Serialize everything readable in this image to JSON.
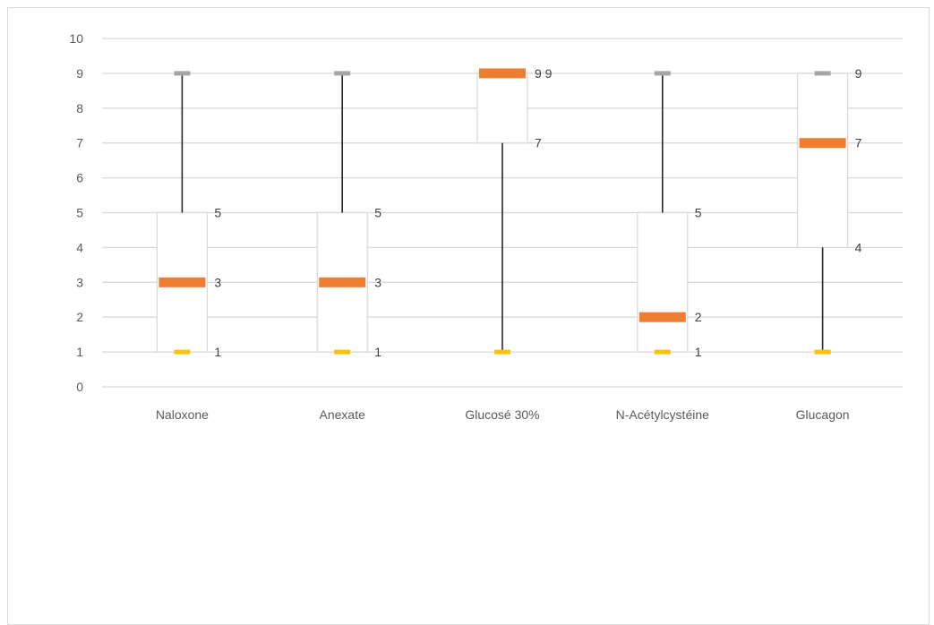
{
  "chart_data": {
    "type": "box",
    "title": "",
    "xlabel": "",
    "ylabel": "",
    "ylim": [
      0,
      10
    ],
    "yticks": [
      0,
      1,
      2,
      3,
      4,
      5,
      6,
      7,
      8,
      9,
      10
    ],
    "grid": true,
    "legend": "none",
    "categories": [
      "Naloxone",
      "Anexate",
      "Glucosé 30%",
      "N-Acétylcystéine",
      "Glucagon"
    ],
    "boxes": [
      {
        "category": "Naloxone",
        "min": 1,
        "q1": 1,
        "median": 3,
        "q3": 5,
        "max": 9,
        "labels": [
          {
            "value": 5,
            "text": "5"
          },
          {
            "value": 3,
            "text": "3"
          },
          {
            "value": 1,
            "text": "1"
          }
        ]
      },
      {
        "category": "Anexate",
        "min": 1,
        "q1": 1,
        "median": 3,
        "q3": 5,
        "max": 9,
        "labels": [
          {
            "value": 5,
            "text": "5"
          },
          {
            "value": 3,
            "text": "3"
          },
          {
            "value": 1,
            "text": "1"
          }
        ]
      },
      {
        "category": "Glucosé 30%",
        "min": 1,
        "q1": 7,
        "median": 9,
        "q3": 9,
        "max": 9,
        "labels": [
          {
            "value": 9,
            "text": "9 9"
          },
          {
            "value": 7,
            "text": "7"
          }
        ]
      },
      {
        "category": "N-Acétylcystéine",
        "min": 1,
        "q1": 1,
        "median": 2,
        "q3": 5,
        "max": 9,
        "labels": [
          {
            "value": 5,
            "text": "5"
          },
          {
            "value": 2,
            "text": "2"
          },
          {
            "value": 1,
            "text": "1"
          }
        ]
      },
      {
        "category": "Glucagon",
        "min": 1,
        "q1": 4,
        "median": 7,
        "q3": 9,
        "max": 9,
        "labels": [
          {
            "value": 9,
            "text": "9"
          },
          {
            "value": 7,
            "text": "7"
          },
          {
            "value": 4,
            "text": "4"
          }
        ]
      }
    ],
    "colors": {
      "grid": "#d9d9d9",
      "box_border": "#d9d9d9",
      "whisker": "#262626",
      "median": "#ed7d31",
      "max_marker": "#a5a5a5",
      "min_marker": "#ffc000",
      "tick_text": "#595959",
      "label_text": "#404040"
    }
  }
}
